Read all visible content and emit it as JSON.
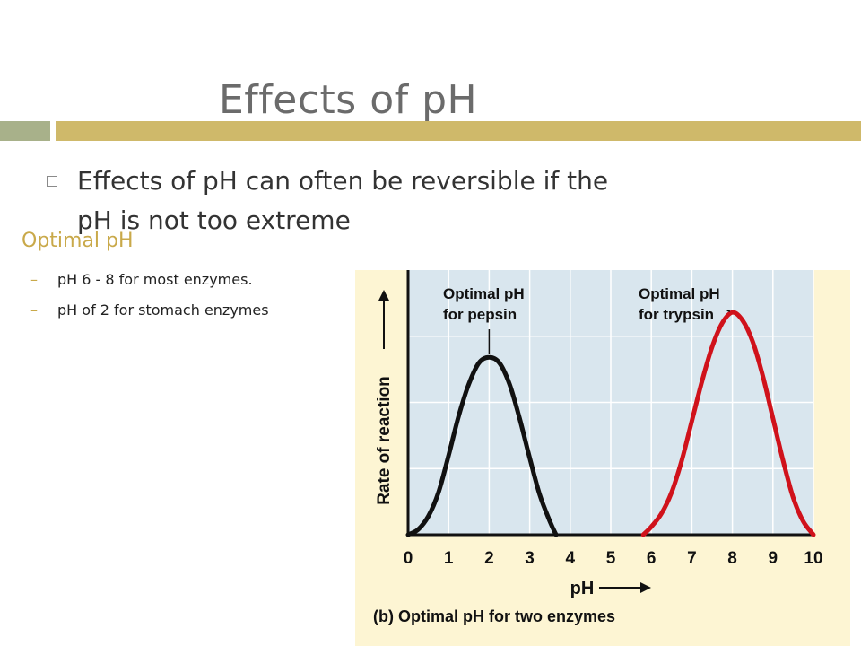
{
  "slide": {
    "title": "Effects of pH",
    "bullet": "Effects of pH can often be reversible if the pH is not too extreme",
    "subheading": "Optimal pH",
    "subitems": [
      {
        "marker": "–",
        "text": "pH 6 - 8 for most enzymes."
      },
      {
        "marker": "–",
        "text": "pH of 2 for stomach enzymes"
      }
    ]
  },
  "colors": {
    "title_text": "#6b6b6b",
    "bar_left": "#a8b18a",
    "bar_right": "#cfb96a",
    "accent": "#c9a94a",
    "figure_bg": "#fdf5d3",
    "plot_bg": "#d9e6ee",
    "pepsin": "#111111",
    "trypsin": "#d0121b"
  },
  "chart_data": {
    "type": "line",
    "title": "(b) Optimal pH for two enzymes",
    "xlabel": "pH",
    "ylabel": "Rate of reaction",
    "xlim": [
      0,
      10
    ],
    "ylim": [
      0,
      100
    ],
    "x_ticks": [
      "0",
      "1",
      "2",
      "3",
      "4",
      "5",
      "6",
      "7",
      "8",
      "9",
      "10"
    ],
    "grid": true,
    "series": [
      {
        "color": "#111111",
        "x": [
          0.0,
          0.25,
          0.5,
          0.75,
          1.0,
          1.25,
          1.5,
          1.75,
          2.0,
          2.25,
          2.5,
          2.75,
          3.0,
          3.25,
          3.5,
          3.65
        ],
        "y": [
          0,
          2,
          7,
          16,
          30,
          45,
          57,
          65,
          67,
          65,
          57,
          44,
          29,
          15,
          5,
          0
        ]
      },
      {
        "color": "#d0121b",
        "x": [
          5.8,
          6.0,
          6.25,
          6.5,
          6.75,
          7.0,
          7.25,
          7.5,
          7.75,
          8.0,
          8.25,
          8.5,
          8.75,
          9.0,
          9.25,
          9.5,
          9.75,
          10.0
        ],
        "y": [
          0,
          3,
          8,
          16,
          28,
          43,
          58,
          71,
          80,
          84,
          81,
          73,
          60,
          44,
          28,
          14,
          5,
          0
        ]
      }
    ],
    "annotations": [
      {
        "line1": "Optimal pH",
        "line2": "for pepsin",
        "x": 2.0,
        "y": 67
      },
      {
        "line1": "Optimal pH",
        "line2": "for trypsin",
        "x": 8.0,
        "y": 84
      }
    ]
  }
}
